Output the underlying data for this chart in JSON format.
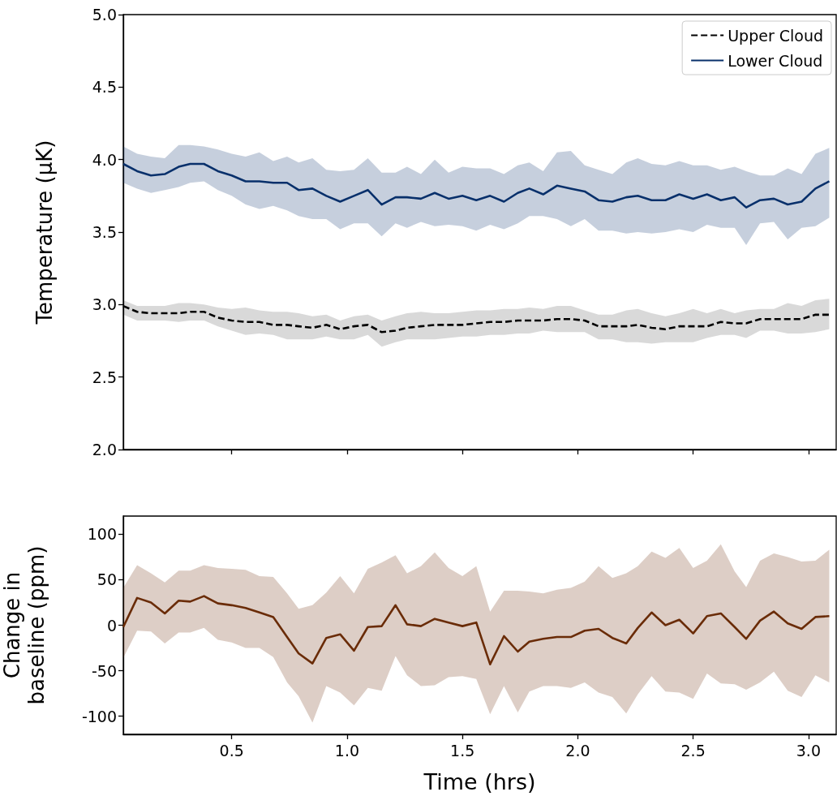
{
  "chart_data": [
    {
      "type": "line",
      "ylabel": "Temperature (μK)",
      "xlim": [
        0.03,
        3.12
      ],
      "ylim": [
        2.0,
        5.0
      ],
      "xticks": [
        0.5,
        1,
        1.5,
        2,
        2.5,
        3
      ],
      "yticks": [
        {
          "value": 2.0,
          "label": "2.0"
        },
        {
          "value": 2.5,
          "label": "2.5"
        },
        {
          "value": 3.0,
          "label": "3.0"
        },
        {
          "value": 3.5,
          "label": "3.5"
        },
        {
          "value": 4.0,
          "label": "4.0"
        },
        {
          "value": 4.5,
          "label": "4.5"
        },
        {
          "value": 5.0,
          "label": "5.0"
        }
      ],
      "tick_labels": "y",
      "legend": "top right",
      "marker": "none",
      "x": [
        0.03,
        0.09,
        0.15,
        0.21,
        0.27,
        0.32,
        0.38,
        0.44,
        0.5,
        0.56,
        0.62,
        0.68,
        0.74,
        0.79,
        0.85,
        0.91,
        0.97,
        1.03,
        1.09,
        1.15,
        1.21,
        1.26,
        1.32,
        1.38,
        1.44,
        1.5,
        1.56,
        1.62,
        1.68,
        1.74,
        1.79,
        1.85,
        1.91,
        1.97,
        2.03,
        2.09,
        2.15,
        2.21,
        2.26,
        2.32,
        2.38,
        2.44,
        2.5,
        2.56,
        2.62,
        2.68,
        2.73,
        2.79,
        2.85,
        2.91,
        2.97,
        3.03,
        3.09
      ],
      "series": [
        {
          "name": "Upper Cloud",
          "color": "#000000",
          "line_style": "dashed",
          "values": [
            2.99,
            2.95,
            2.94,
            2.94,
            2.94,
            2.95,
            2.95,
            2.91,
            2.89,
            2.88,
            2.88,
            2.86,
            2.86,
            2.85,
            2.84,
            2.86,
            2.83,
            2.85,
            2.86,
            2.81,
            2.82,
            2.84,
            2.85,
            2.86,
            2.86,
            2.86,
            2.87,
            2.88,
            2.88,
            2.89,
            2.89,
            2.89,
            2.9,
            2.9,
            2.89,
            2.85,
            2.85,
            2.85,
            2.86,
            2.84,
            2.83,
            2.85,
            2.85,
            2.85,
            2.88,
            2.87,
            2.87,
            2.9,
            2.9,
            2.9,
            2.9,
            2.93,
            2.93
          ],
          "upper": [
            3.03,
            2.99,
            2.99,
            2.99,
            3.01,
            3.01,
            3.0,
            2.98,
            2.97,
            2.98,
            2.96,
            2.95,
            2.95,
            2.94,
            2.92,
            2.93,
            2.89,
            2.92,
            2.93,
            2.89,
            2.92,
            2.94,
            2.95,
            2.94,
            2.94,
            2.95,
            2.96,
            2.96,
            2.97,
            2.97,
            2.98,
            2.97,
            2.99,
            2.99,
            2.96,
            2.93,
            2.93,
            2.96,
            2.97,
            2.94,
            2.92,
            2.94,
            2.97,
            2.94,
            2.97,
            2.94,
            2.96,
            2.97,
            2.97,
            3.01,
            2.99,
            3.03,
            3.04
          ],
          "lower": [
            2.93,
            2.89,
            2.89,
            2.89,
            2.88,
            2.89,
            2.89,
            2.85,
            2.82,
            2.79,
            2.8,
            2.79,
            2.76,
            2.76,
            2.76,
            2.78,
            2.76,
            2.76,
            2.79,
            2.71,
            2.74,
            2.76,
            2.76,
            2.76,
            2.77,
            2.78,
            2.78,
            2.79,
            2.79,
            2.8,
            2.8,
            2.82,
            2.81,
            2.81,
            2.81,
            2.76,
            2.76,
            2.74,
            2.74,
            2.73,
            2.74,
            2.74,
            2.74,
            2.77,
            2.79,
            2.79,
            2.77,
            2.82,
            2.82,
            2.8,
            2.8,
            2.81,
            2.83
          ]
        },
        {
          "name": "Lower Cloud",
          "color": "#08306b",
          "line_style": "solid",
          "values": [
            3.97,
            3.92,
            3.89,
            3.9,
            3.95,
            3.97,
            3.97,
            3.92,
            3.89,
            3.85,
            3.85,
            3.84,
            3.84,
            3.79,
            3.8,
            3.75,
            3.71,
            3.75,
            3.79,
            3.69,
            3.74,
            3.74,
            3.73,
            3.77,
            3.73,
            3.75,
            3.72,
            3.75,
            3.71,
            3.77,
            3.8,
            3.76,
            3.82,
            3.8,
            3.78,
            3.72,
            3.71,
            3.74,
            3.75,
            3.72,
            3.72,
            3.76,
            3.73,
            3.76,
            3.72,
            3.74,
            3.67,
            3.72,
            3.73,
            3.69,
            3.71,
            3.8,
            3.85
          ],
          "upper": [
            4.09,
            4.04,
            4.02,
            4.01,
            4.1,
            4.1,
            4.09,
            4.07,
            4.04,
            4.02,
            4.05,
            3.99,
            4.02,
            3.98,
            4.01,
            3.93,
            3.92,
            3.93,
            4.01,
            3.91,
            3.91,
            3.95,
            3.9,
            4.0,
            3.91,
            3.95,
            3.94,
            3.94,
            3.9,
            3.96,
            3.98,
            3.92,
            4.05,
            4.06,
            3.96,
            3.93,
            3.9,
            3.98,
            4.01,
            3.97,
            3.96,
            3.99,
            3.96,
            3.96,
            3.93,
            3.95,
            3.92,
            3.89,
            3.89,
            3.94,
            3.9,
            4.04,
            4.08
          ],
          "lower": [
            3.84,
            3.8,
            3.77,
            3.79,
            3.81,
            3.84,
            3.85,
            3.79,
            3.75,
            3.69,
            3.66,
            3.68,
            3.65,
            3.61,
            3.59,
            3.59,
            3.52,
            3.56,
            3.56,
            3.47,
            3.56,
            3.53,
            3.57,
            3.54,
            3.55,
            3.54,
            3.51,
            3.55,
            3.52,
            3.56,
            3.61,
            3.61,
            3.59,
            3.54,
            3.59,
            3.51,
            3.51,
            3.49,
            3.5,
            3.49,
            3.5,
            3.52,
            3.5,
            3.55,
            3.53,
            3.53,
            3.41,
            3.56,
            3.57,
            3.45,
            3.53,
            3.54,
            3.6
          ]
        }
      ]
    },
    {
      "type": "line",
      "xlabel": "Time (hrs)",
      "ylabel": "Change in baseline (ppm)",
      "xlim": [
        0.03,
        3.12
      ],
      "ylim": [
        -120,
        120
      ],
      "xticks": [
        {
          "value": 0.5,
          "label": "0.5"
        },
        {
          "value": 1.0,
          "label": "1.0"
        },
        {
          "value": 1.5,
          "label": "1.5"
        },
        {
          "value": 2.0,
          "label": "2.0"
        },
        {
          "value": 2.5,
          "label": "2.5"
        },
        {
          "value": 3.0,
          "label": "3.0"
        }
      ],
      "yticks": [
        -100,
        -50,
        0,
        50,
        100
      ],
      "marker": "none",
      "x": [
        0.03,
        0.09,
        0.15,
        0.21,
        0.27,
        0.32,
        0.38,
        0.44,
        0.5,
        0.56,
        0.62,
        0.68,
        0.74,
        0.79,
        0.85,
        0.91,
        0.97,
        1.03,
        1.09,
        1.15,
        1.21,
        1.26,
        1.32,
        1.38,
        1.44,
        1.5,
        1.56,
        1.62,
        1.68,
        1.74,
        1.79,
        1.85,
        1.91,
        1.97,
        2.03,
        2.09,
        2.15,
        2.21,
        2.26,
        2.32,
        2.38,
        2.44,
        2.5,
        2.56,
        2.62,
        2.68,
        2.73,
        2.79,
        2.85,
        2.91,
        2.97,
        3.03,
        3.09
      ],
      "series": [
        {
          "color": "#6a2c08",
          "line_style": "solid",
          "values": [
            -2,
            30,
            25,
            13,
            27,
            26,
            32,
            24,
            22,
            19,
            14,
            9,
            -13,
            -31,
            -42,
            -14,
            -10,
            -28,
            -2,
            -1,
            22,
            1,
            -1,
            7,
            3,
            -1,
            3,
            -43,
            -12,
            -29,
            -18,
            -15,
            -13,
            -13,
            -6,
            -4,
            -14,
            -20,
            -3,
            14,
            0,
            6,
            -9,
            10,
            13,
            -2,
            -15,
            5,
            15,
            2,
            -4,
            9,
            10
          ],
          "upper": [
            41,
            66,
            57,
            47,
            60,
            60,
            66,
            63,
            62,
            61,
            54,
            53,
            35,
            18,
            22,
            36,
            54,
            35,
            62,
            69,
            77,
            57,
            65,
            80,
            63,
            54,
            65,
            15,
            38,
            38,
            37,
            35,
            39,
            41,
            48,
            65,
            52,
            57,
            65,
            81,
            74,
            85,
            63,
            71,
            89,
            59,
            42,
            71,
            79,
            75,
            70,
            71,
            83
          ],
          "lower": [
            -36,
            -6,
            -7,
            -20,
            -8,
            -8,
            -3,
            -16,
            -19,
            -25,
            -25,
            -35,
            -63,
            -78,
            -107,
            -67,
            -74,
            -88,
            -69,
            -72,
            -34,
            -55,
            -67,
            -66,
            -57,
            -56,
            -59,
            -98,
            -67,
            -96,
            -73,
            -67,
            -67,
            -69,
            -63,
            -74,
            -79,
            -97,
            -76,
            -56,
            -73,
            -74,
            -81,
            -53,
            -64,
            -65,
            -71,
            -63,
            -51,
            -72,
            -79,
            -55,
            -63
          ]
        }
      ]
    }
  ]
}
